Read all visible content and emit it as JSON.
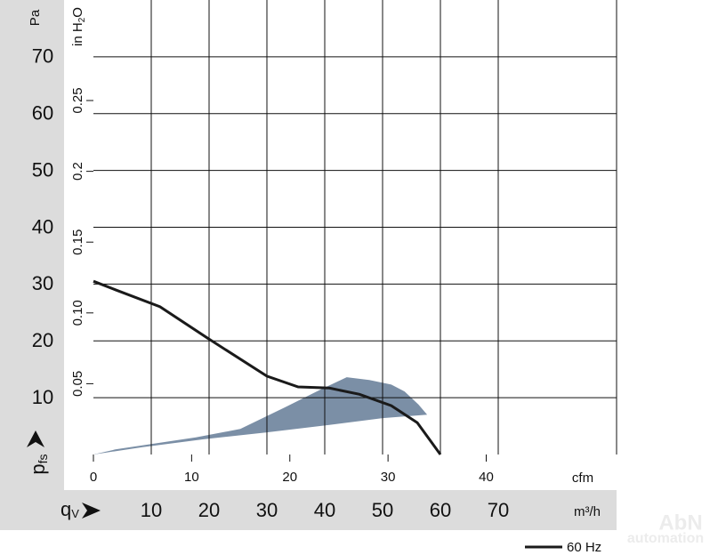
{
  "chart_data": {
    "type": "line",
    "y_label": "Pa",
    "y2_label": {
      "main": "in H",
      "sub": "2",
      "end": "O"
    },
    "p_label": {
      "main": "p",
      "sub": "fs"
    },
    "q_label": {
      "main": "q",
      "sub": "V"
    },
    "x_unit": "m³/h",
    "x2_unit": "cfm",
    "xlim": [
      0,
      90
    ],
    "xticks": [
      10,
      20,
      30,
      40,
      50,
      60,
      70
    ],
    "x2lim": [
      0,
      53
    ],
    "x2ticks": [
      0,
      10,
      20,
      30,
      40
    ],
    "ylim": [
      0,
      80
    ],
    "yticks": [
      10,
      20,
      30,
      40,
      50,
      60,
      70
    ],
    "y2lim": [
      0,
      0.321
    ],
    "y2ticks": [
      0.05,
      {
        "value": 0.1,
        "label": "0.10"
      },
      0.15,
      0.2,
      0.25
    ],
    "grid": true,
    "series": [
      {
        "name": "60 Hz",
        "color": "#1a1a1a",
        "x": [
          0,
          3.8,
          11.5,
          20,
          30,
          35.4,
          40.8,
          46,
          51.5,
          56,
          60
        ],
        "values": [
          30.5,
          29,
          26,
          20.3,
          13.8,
          11.9,
          11.7,
          10.6,
          8.6,
          5.6,
          0
        ]
      }
    ],
    "region": {
      "color": "#7b8fa6",
      "x": [
        0,
        3.8,
        17.7,
        25.4,
        33.1,
        39.2,
        43.8,
        47.7,
        51.5,
        53.8,
        56.2,
        57.7,
        50,
        40.8,
        30,
        19.2,
        8.5
      ],
      "values": [
        0,
        0.9,
        3.0,
        4.5,
        8.3,
        11.4,
        13.6,
        13.1,
        12.3,
        11.1,
        8.8,
        7.0,
        6.4,
        5.2,
        3.9,
        2.7,
        1.3
      ]
    },
    "watermark": [
      "AbN",
      "automation"
    ]
  }
}
